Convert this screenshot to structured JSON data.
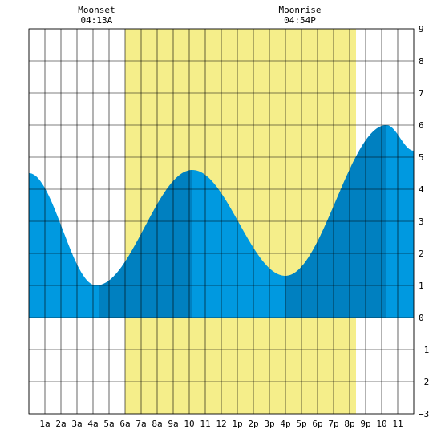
{
  "chart_data": {
    "type": "area",
    "title": "",
    "xlabel": "",
    "ylabel": "",
    "xlim": [
      0,
      24
    ],
    "ylim": [
      -3,
      9
    ],
    "y_ticks": [
      -3,
      -2,
      -1,
      0,
      1,
      2,
      3,
      4,
      5,
      6,
      7,
      8,
      9
    ],
    "x_tick_labels": [
      "1a",
      "2a",
      "3a",
      "4a",
      "5a",
      "6a",
      "7a",
      "8a",
      "9a",
      "10",
      "11",
      "12",
      "1p",
      "2p",
      "3p",
      "4p",
      "5p",
      "6p",
      "7p",
      "8p",
      "9p",
      "10",
      "11"
    ],
    "grid": true,
    "daylight": {
      "start_hour": 6.0,
      "end_hour": 20.4,
      "color": "#f5ee8a"
    },
    "moon_events": [
      {
        "label": "Moonset",
        "time": "04:13A",
        "hour": 4.22
      },
      {
        "label": "Moonrise",
        "time": "04:54P",
        "hour": 16.9
      }
    ],
    "tide_extremes": [
      {
        "hour": 0.0,
        "height": 4.5
      },
      {
        "hour": 4.2,
        "height": 1.0
      },
      {
        "hour": 10.2,
        "height": 4.6
      },
      {
        "hour": 16.0,
        "height": 1.3
      },
      {
        "hour": 22.3,
        "height": 6.0
      },
      {
        "hour": 24.0,
        "height": 5.2
      }
    ],
    "shaded_segments": [
      {
        "from_hour": 4.4,
        "to_hour": 10.2,
        "color": "#0080c0"
      },
      {
        "from_hour": 16.0,
        "to_hour": 22.3,
        "color": "#0080c0"
      }
    ],
    "colors": {
      "tide": "#0099e0",
      "tide_dark": "#0080c0",
      "grid": "#000000"
    }
  }
}
